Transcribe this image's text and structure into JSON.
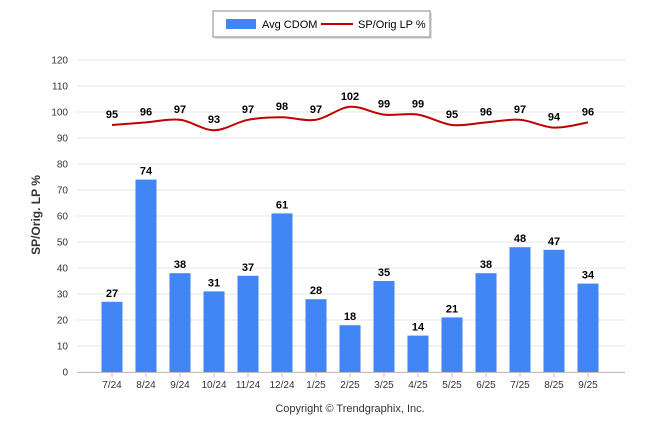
{
  "chart_data": {
    "type": "bar",
    "categories": [
      "7/24",
      "8/24",
      "9/24",
      "10/24",
      "11/24",
      "12/24",
      "1/25",
      "2/25",
      "3/25",
      "4/25",
      "5/25",
      "6/25",
      "7/25",
      "8/25",
      "9/25"
    ],
    "series": [
      {
        "name": "Avg CDOM",
        "kind": "bar",
        "color": "#4285f4",
        "values": [
          27,
          74,
          38,
          31,
          37,
          61,
          28,
          18,
          35,
          14,
          21,
          38,
          48,
          47,
          34
        ]
      },
      {
        "name": "SP/Orig LP %",
        "kind": "line",
        "color": "#c00000",
        "values": [
          95,
          96,
          97,
          93,
          97,
          98,
          97,
          102,
          99,
          99,
          95,
          96,
          97,
          94,
          96
        ]
      }
    ],
    "ylabel": "SP/Orig. LP %",
    "xlabel": "",
    "ylim": [
      0,
      120
    ],
    "yticks": [
      0,
      10,
      20,
      30,
      40,
      50,
      60,
      70,
      80,
      90,
      100,
      110,
      120
    ],
    "grid": true,
    "legend_position": "top-center",
    "credit": "Copyright © Trendgraphix, Inc."
  },
  "colors": {
    "grid": "#e6e6e6",
    "axis": "#c0c0c0"
  }
}
